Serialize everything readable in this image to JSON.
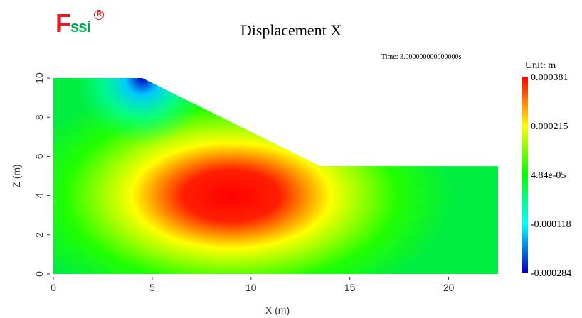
{
  "logo": {
    "main": "F",
    "rest": "ssi",
    "reg": "R"
  },
  "title": "Displacement X",
  "time_label": "Time: 3.000000000000000s",
  "unit_label": "Unit:   m",
  "colormap": [
    "#0000c8",
    "#00ffff",
    "#00ff00",
    "#ffff00",
    "#ff0000"
  ],
  "chart_data": {
    "type": "heatmap",
    "title": "Displacement X",
    "xlabel": "X (m)",
    "ylabel": "Z (m)",
    "xlim": [
      0,
      22.5
    ],
    "ylim": [
      0,
      10
    ],
    "xticks": [
      0,
      5,
      10,
      15,
      20
    ],
    "yticks": [
      0,
      2,
      4,
      6,
      8,
      10
    ],
    "domain_outline": [
      [
        0,
        0
      ],
      [
        22.5,
        0
      ],
      [
        22.5,
        5.5
      ],
      [
        13.5,
        5.5
      ],
      [
        4.5,
        10
      ],
      [
        0,
        10
      ]
    ],
    "value_range": [
      -0.000284,
      0.000381
    ],
    "peak": {
      "x": 9,
      "z": 4,
      "value": 0.000381
    },
    "colorbar": {
      "label_values": [
        0.000381,
        0.000215,
        4.84e-05,
        -0.000118,
        -0.000284
      ],
      "labels": [
        "0.000381",
        "0.000215",
        "4.84e-05",
        "-0.000118",
        "-0.000284"
      ]
    }
  }
}
